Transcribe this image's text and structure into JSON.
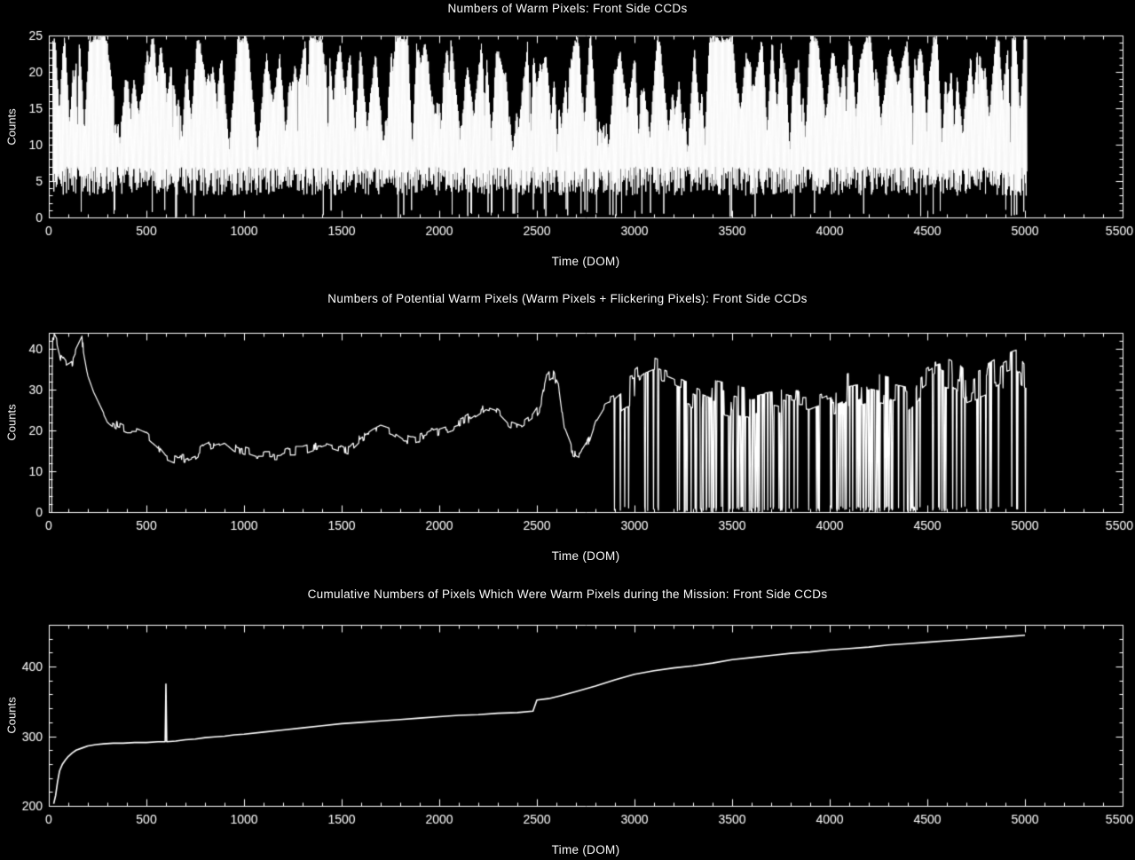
{
  "page": {
    "background": "#000000",
    "foreground": "#ffffff"
  },
  "chart_data": [
    {
      "type": "line",
      "title": "Numbers of Warm Pixels: Front Side CCDs",
      "xlabel": "Time (DOM)",
      "ylabel": "Counts",
      "xlim": [
        0,
        5500
      ],
      "ylim": [
        0,
        25
      ],
      "xticks": [
        0,
        500,
        1000,
        1500,
        2000,
        2500,
        3000,
        3500,
        4000,
        4500,
        5000,
        5500
      ],
      "yticks": [
        0,
        5,
        10,
        15,
        20,
        25
      ],
      "x_minor_step": 100,
      "y_minor_step": 1,
      "grid": false,
      "legend": null,
      "description": "High-frequency noisy warm-pixel counts oscillating between ~4 and the 25-count ceiling, with frequent downward excursions from the top and occasional drops to 0; data span DOM ~20 to ~5010, blank afterwards.",
      "series": {
        "kind": "dense_noise_band",
        "seed": 11,
        "x_start": 20,
        "x_end": 5010,
        "sample_step": 2,
        "band_bottom": [
          3,
          7
        ],
        "wedge_density": 0.04,
        "wedge_width": [
          8,
          110
        ],
        "wedge_depth": [
          3,
          16
        ],
        "zero_dip_prob": 0.02,
        "zero_zones": [
          {
            "from": 2050,
            "to": 2750,
            "p": 0.1
          },
          {
            "from": 2850,
            "to": 3100,
            "p": 0.07
          },
          {
            "from": 4650,
            "to": 5010,
            "p": 0.05
          }
        ]
      }
    },
    {
      "type": "line",
      "title": "Numbers of Potential Warm Pixels (Warm Pixels + Flickering Pixels): Front Side CCDs",
      "xlabel": "Time (DOM)",
      "ylabel": "Counts",
      "xlim": [
        0,
        5500
      ],
      "ylim": [
        0,
        44
      ],
      "xticks": [
        0,
        500,
        1000,
        1500,
        2000,
        2500,
        3000,
        3500,
        4000,
        4500,
        5000,
        5500
      ],
      "yticks": [
        0,
        10,
        20,
        30,
        40
      ],
      "x_minor_step": 100,
      "y_minor_step": 2,
      "grid": false,
      "legend": null,
      "description": "Starts near 44 at mission start, settles to ~13-20 through DOM 2400, spikes near DOM 2550, then rises to ~25-36 with frequent single-sample dropouts to 0 after DOM ~2880; data end near DOM 5000.",
      "series": {
        "kind": "anchors_noise_dropouts",
        "seed": 7,
        "x_start": 15,
        "x_end": 5005,
        "sample_step": 2.5,
        "noise_amp": 1.2,
        "noise_amp_late": 4.5,
        "amp_change_x": 2880,
        "dropout_zones": [
          {
            "from": 2880,
            "to": 5005,
            "p": 0.12
          },
          {
            "from": 3250,
            "to": 3650,
            "p": 0.28
          },
          {
            "from": 4150,
            "to": 4480,
            "p": 0.28
          }
        ],
        "anchors": [
          [
            15,
            0
          ],
          [
            18,
            44
          ],
          [
            40,
            42
          ],
          [
            60,
            38
          ],
          [
            90,
            36
          ],
          [
            120,
            37
          ],
          [
            150,
            40
          ],
          [
            170,
            42
          ],
          [
            200,
            34
          ],
          [
            230,
            30
          ],
          [
            260,
            27
          ],
          [
            300,
            23
          ],
          [
            350,
            21
          ],
          [
            400,
            20
          ],
          [
            450,
            20
          ],
          [
            500,
            19
          ],
          [
            550,
            17
          ],
          [
            600,
            14
          ],
          [
            650,
            13
          ],
          [
            700,
            13
          ],
          [
            750,
            14
          ],
          [
            800,
            16
          ],
          [
            850,
            17
          ],
          [
            900,
            18
          ],
          [
            950,
            16
          ],
          [
            1000,
            15
          ],
          [
            1060,
            14
          ],
          [
            1120,
            14
          ],
          [
            1180,
            14
          ],
          [
            1240,
            15
          ],
          [
            1300,
            15
          ],
          [
            1360,
            16
          ],
          [
            1420,
            17
          ],
          [
            1480,
            16
          ],
          [
            1540,
            15
          ],
          [
            1600,
            18
          ],
          [
            1660,
            20
          ],
          [
            1700,
            21
          ],
          [
            1760,
            20
          ],
          [
            1820,
            18
          ],
          [
            1880,
            18
          ],
          [
            1940,
            19
          ],
          [
            2000,
            20
          ],
          [
            2060,
            21
          ],
          [
            2120,
            22
          ],
          [
            2180,
            24
          ],
          [
            2240,
            26
          ],
          [
            2300,
            25
          ],
          [
            2360,
            22
          ],
          [
            2420,
            21
          ],
          [
            2480,
            23
          ],
          [
            2520,
            26
          ],
          [
            2550,
            33
          ],
          [
            2580,
            34
          ],
          [
            2610,
            31
          ],
          [
            2640,
            20
          ],
          [
            2680,
            15
          ],
          [
            2720,
            14
          ],
          [
            2760,
            17
          ],
          [
            2800,
            23
          ],
          [
            2850,
            27
          ],
          [
            2900,
            28
          ],
          [
            2950,
            30
          ],
          [
            3000,
            31
          ],
          [
            3050,
            33
          ],
          [
            3100,
            34
          ],
          [
            3150,
            33
          ],
          [
            3200,
            32
          ],
          [
            3300,
            30
          ],
          [
            3400,
            28
          ],
          [
            3500,
            27
          ],
          [
            3600,
            26
          ],
          [
            3700,
            27
          ],
          [
            3800,
            26
          ],
          [
            3900,
            26
          ],
          [
            4000,
            28
          ],
          [
            4100,
            30
          ],
          [
            4200,
            31
          ],
          [
            4300,
            30
          ],
          [
            4400,
            29
          ],
          [
            4500,
            33
          ],
          [
            4560,
            35
          ],
          [
            4620,
            34
          ],
          [
            4700,
            30
          ],
          [
            4800,
            32
          ],
          [
            4900,
            35
          ],
          [
            4960,
            36
          ],
          [
            5000,
            34
          ]
        ]
      }
    },
    {
      "type": "line",
      "title": "Cumulative Numbers of Pixels Which Were Warm Pixels during the Mission: Front Side CCDs",
      "xlabel": "Time (DOM)",
      "ylabel": "Counts",
      "xlim": [
        0,
        5500
      ],
      "ylim": [
        200,
        460
      ],
      "xticks": [
        0,
        500,
        1000,
        1500,
        2000,
        2500,
        3000,
        3500,
        4000,
        4500,
        5000,
        5500
      ],
      "yticks": [
        200,
        300,
        400
      ],
      "x_minor_step": 100,
      "y_minor_step": 20,
      "grid": false,
      "legend": null,
      "description": "Cumulative count rising steeply from ~205 to ~290 in the first 200 days, a narrow transient spike to ~375 near DOM 600, a step jump near DOM 2500, then steady growth to ~445 by DOM 5000.",
      "series": {
        "kind": "anchors_line",
        "anchors": [
          [
            25,
            203
          ],
          [
            35,
            215
          ],
          [
            45,
            235
          ],
          [
            55,
            250
          ],
          [
            70,
            260
          ],
          [
            85,
            266
          ],
          [
            100,
            271
          ],
          [
            120,
            276
          ],
          [
            140,
            280
          ],
          [
            170,
            283
          ],
          [
            200,
            286
          ],
          [
            240,
            288
          ],
          [
            280,
            289
          ],
          [
            330,
            290
          ],
          [
            380,
            290
          ],
          [
            440,
            291
          ],
          [
            500,
            291
          ],
          [
            560,
            292
          ],
          [
            596,
            292
          ],
          [
            600,
            375
          ],
          [
            604,
            292
          ],
          [
            650,
            293
          ],
          [
            700,
            295
          ],
          [
            750,
            296
          ],
          [
            800,
            298
          ],
          [
            850,
            299
          ],
          [
            900,
            300
          ],
          [
            950,
            302
          ],
          [
            1000,
            303
          ],
          [
            1100,
            306
          ],
          [
            1200,
            309
          ],
          [
            1300,
            312
          ],
          [
            1400,
            315
          ],
          [
            1500,
            318
          ],
          [
            1600,
            320
          ],
          [
            1700,
            322
          ],
          [
            1800,
            324
          ],
          [
            1900,
            326
          ],
          [
            2000,
            328
          ],
          [
            2100,
            330
          ],
          [
            2200,
            331
          ],
          [
            2300,
            333
          ],
          [
            2400,
            334
          ],
          [
            2480,
            336
          ],
          [
            2500,
            352
          ],
          [
            2560,
            354
          ],
          [
            2620,
            358
          ],
          [
            2700,
            364
          ],
          [
            2800,
            372
          ],
          [
            2900,
            381
          ],
          [
            3000,
            389
          ],
          [
            3100,
            394
          ],
          [
            3200,
            398
          ],
          [
            3300,
            401
          ],
          [
            3400,
            405
          ],
          [
            3500,
            410
          ],
          [
            3600,
            413
          ],
          [
            3700,
            416
          ],
          [
            3800,
            419
          ],
          [
            3900,
            421
          ],
          [
            4000,
            424
          ],
          [
            4100,
            426
          ],
          [
            4200,
            428
          ],
          [
            4300,
            431
          ],
          [
            4400,
            433
          ],
          [
            4500,
            435
          ],
          [
            4600,
            437
          ],
          [
            4700,
            439
          ],
          [
            4800,
            441
          ],
          [
            4900,
            443
          ],
          [
            5000,
            445
          ]
        ]
      }
    }
  ]
}
